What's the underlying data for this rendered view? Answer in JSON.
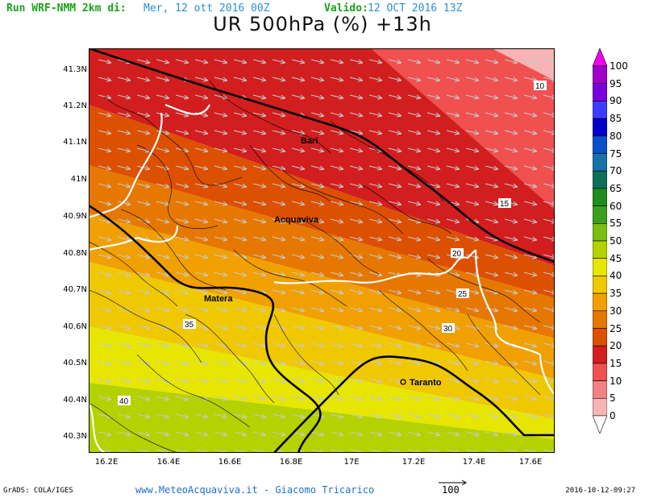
{
  "header": {
    "run_label": "Run WRF-NMM 2km di:",
    "run_date": "Mer, 12 ott 2016 00Z",
    "valid_label": "Valido:",
    "valid_date": "12 OCT 2016 13Z",
    "title": "UR 500hPa (%) +13h"
  },
  "map": {
    "y_ticks": [
      "41.3N",
      "41.2N",
      "41.1N",
      "41N",
      "40.9N",
      "40.8N",
      "40.7N",
      "40.6N",
      "40.5N",
      "40.4N",
      "40.3N"
    ],
    "x_ticks": [
      "16.2E",
      "16.4E",
      "16.6E",
      "16.8E",
      "17E",
      "17.2E",
      "17.4E",
      "17.6E"
    ],
    "cities": [
      {
        "name": "Bari"
      },
      {
        "name": "Acquaviva"
      },
      {
        "name": "Matera"
      },
      {
        "name": "Taranto"
      }
    ],
    "contour_labels": [
      "10",
      "15",
      "20",
      "25",
      "30",
      "35",
      "40"
    ],
    "wind_barb_color": "#c9c9c9"
  },
  "legend": {
    "values": [
      "100",
      "95",
      "90",
      "85",
      "80",
      "75",
      "70",
      "65",
      "60",
      "55",
      "50",
      "45",
      "40",
      "35",
      "30",
      "25",
      "20",
      "15",
      "10",
      "5",
      "0"
    ],
    "colors": [
      "#a000c8",
      "#7a00dc",
      "#3c3cff",
      "#0000c8",
      "#0a4ec8",
      "#1872a8",
      "#0e6e5a",
      "#1e8c1e",
      "#3ca01e",
      "#78be14",
      "#b4d200",
      "#e6e600",
      "#f0c800",
      "#f0a000",
      "#e67800",
      "#dc5000",
      "#d21e1e",
      "#f05050",
      "#f08282",
      "#f8b4b4"
    ],
    "top_cap_color": "#f000f0"
  },
  "footer": {
    "grads": "GrADS: COLA/IGES",
    "website": "www.MeteoAcquaviva.it - Giacomo Tricarico",
    "vector_scale": "100",
    "timestamp": "2016-10-12-09:27"
  }
}
